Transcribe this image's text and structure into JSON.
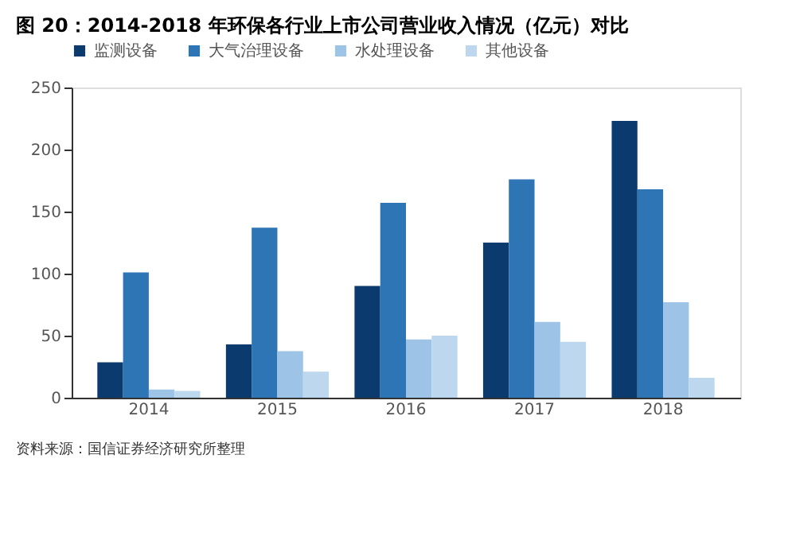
{
  "chart_data": {
    "type": "bar",
    "title": "图 20：2014-2018 年环保各行业上市公司营业收入情况（亿元）对比",
    "categories": [
      "2014",
      "2015",
      "2016",
      "2017",
      "2018"
    ],
    "series": [
      {
        "name": "监测设备",
        "color": "#0b3a6e",
        "values": [
          28.5,
          43,
          90,
          125,
          223
        ]
      },
      {
        "name": "大气治理设备",
        "color": "#2e75b6",
        "values": [
          101,
          137,
          157,
          176,
          168
        ]
      },
      {
        "name": "水处理设备",
        "color": "#9dc3e6",
        "values": [
          6.5,
          37.5,
          47,
          61,
          77
        ]
      },
      {
        "name": "其他设备",
        "color": "#bdd7ee",
        "values": [
          5.5,
          21,
          50,
          45,
          16
        ]
      }
    ],
    "ylim": [
      0,
      250
    ],
    "yticks": [
      0,
      50,
      100,
      150,
      200,
      250
    ],
    "grid": false,
    "legend": "top",
    "annotations": [
      "资料来源：国信证券经济研究所整理"
    ]
  }
}
